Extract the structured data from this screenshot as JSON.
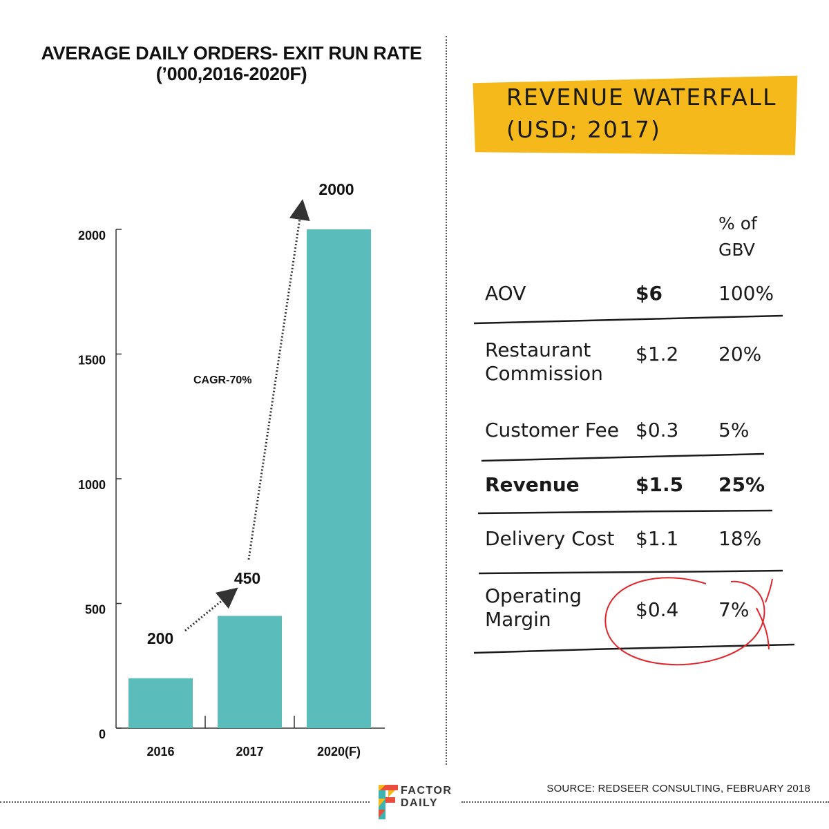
{
  "chart_data": {
    "type": "bar",
    "title_line1": "AVERAGE DAILY ORDERS- EXIT RUN RATE",
    "title_line2": "(’000,2016-2020F)",
    "categories": [
      "2016",
      "2017",
      "2020(F)"
    ],
    "values": [
      200,
      450,
      2000
    ],
    "data_labels": [
      "200",
      "450",
      "2000"
    ],
    "y_ticks": [
      "0",
      "500",
      "1000",
      "1500",
      "2000"
    ],
    "ylim": [
      0,
      2000
    ],
    "bar_color": "#5bbcbc",
    "annotation": "CAGR-70%",
    "grid": false
  },
  "waterfall": {
    "title_line1": "REVENUE WATERFALL",
    "title_line2": "(USD; 2017)",
    "banner_color": "#f5b91c",
    "header_line1": "% of",
    "header_line2": "GBV",
    "rows": [
      {
        "label_line1": "AOV",
        "label_line2": "",
        "value": "$6",
        "pct": "100%"
      },
      {
        "label_line1": "Restaurant",
        "label_line2": "Commission",
        "value": "$1.2",
        "pct": "20%"
      },
      {
        "label_line1": "Customer Fee",
        "label_line2": "",
        "value": "$0.3",
        "pct": "5%"
      },
      {
        "label_line1": "Revenue",
        "label_line2": "",
        "value": "$1.5",
        "pct": "25%"
      },
      {
        "label_line1": "Delivery Cost",
        "label_line2": "",
        "value": "$1.1",
        "pct": "18%"
      },
      {
        "label_line1": "Operating",
        "label_line2": "Margin",
        "value": "$0.4",
        "pct": "7%"
      }
    ],
    "highlight_color": "#e0262b"
  },
  "footer": {
    "source": "SOURCE: REDSEER CONSULTING, FEBRUARY 2018",
    "logo_line1": "FACTOR",
    "logo_line2": "DAILY"
  }
}
